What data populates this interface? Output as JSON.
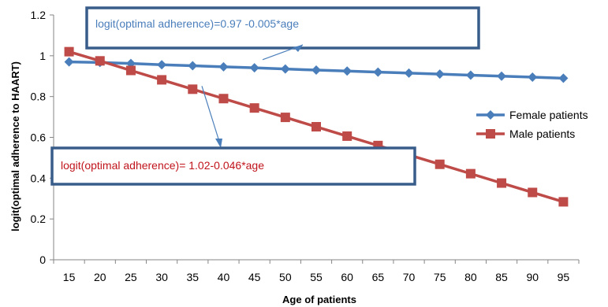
{
  "chart_data": {
    "type": "line",
    "xlabel": "Age of patients",
    "ylabel": "logit(optimal adherence to HAART)",
    "ylim": [
      0,
      1.2
    ],
    "yticks": [
      "0",
      "0.2",
      "0.4",
      "0.6",
      "0.8",
      "1",
      "1.2"
    ],
    "x": [
      15,
      20,
      25,
      30,
      35,
      40,
      45,
      50,
      55,
      60,
      65,
      70,
      75,
      80,
      85,
      90,
      95
    ],
    "series": [
      {
        "name": "Female  patients",
        "color": "#4a7ebb",
        "marker": "diamond",
        "values": [
          0.97,
          0.967,
          0.962,
          0.956,
          0.951,
          0.946,
          0.941,
          0.935,
          0.93,
          0.925,
          0.92,
          0.915,
          0.91,
          0.905,
          0.9,
          0.895,
          0.89
        ]
      },
      {
        "name": "Male  patients",
        "color": "#be4b48",
        "marker": "square",
        "values": [
          1.02,
          0.975,
          0.928,
          0.882,
          0.836,
          0.79,
          0.744,
          0.698,
          0.652,
          0.606,
          0.56,
          0.514,
          0.468,
          0.422,
          0.376,
          0.33,
          0.284
        ]
      }
    ],
    "grid": false,
    "legend_position": "right",
    "annotations": [
      {
        "text": "logit(optimal adherence)=0.97 -0.005*age",
        "color": "#4a7ebb",
        "series": 0
      },
      {
        "text": "logit(optimal adherence)= 1.02-0.046*age",
        "color": "#c0141c",
        "series": 1
      }
    ]
  }
}
